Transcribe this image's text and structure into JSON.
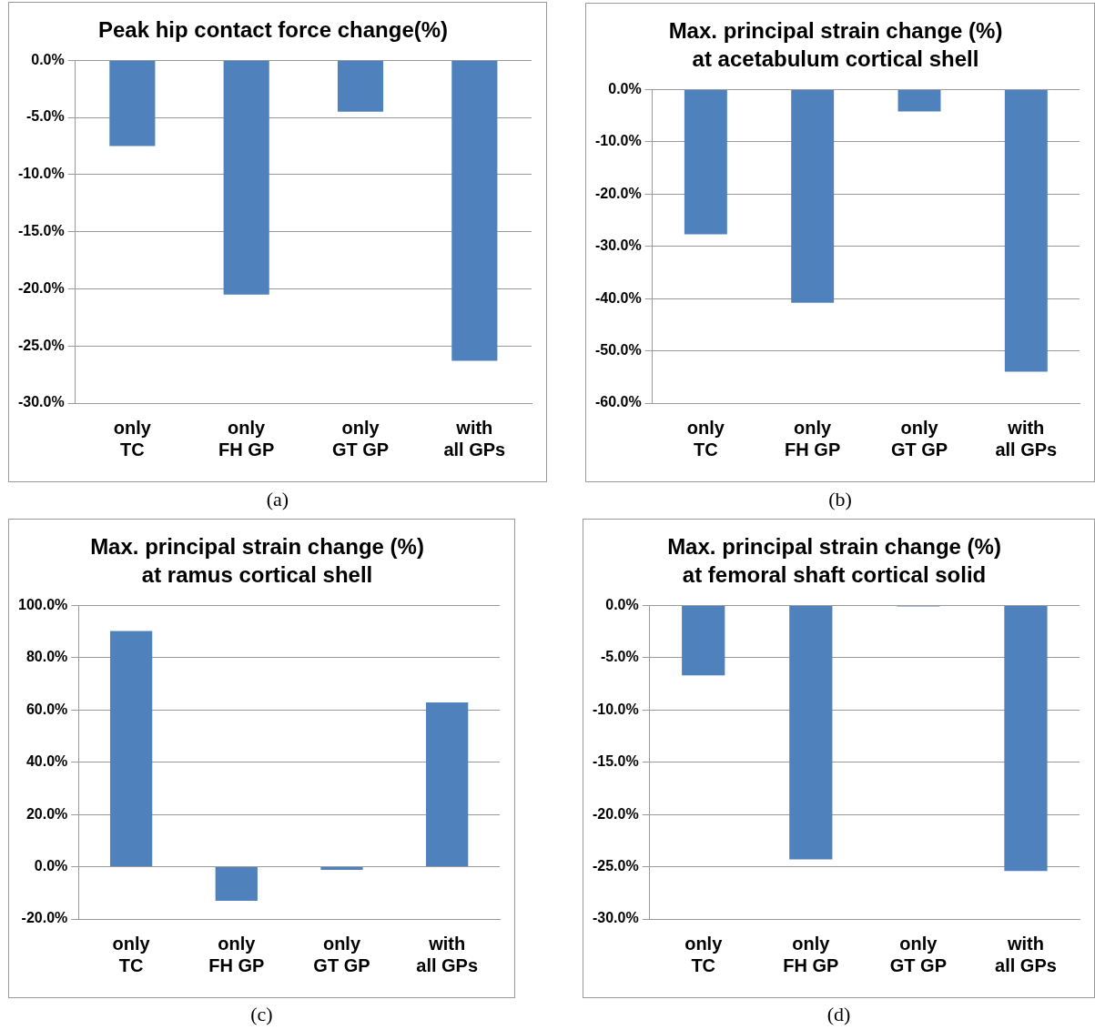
{
  "chart_data": [
    {
      "type": "bar",
      "title": "Peak hip contact force change(%)",
      "categories": [
        "only\nTC",
        "only\nFH GP",
        "only\nGT GP",
        "with\nall GPs"
      ],
      "values": [
        -7.5,
        -20.5,
        -4.5,
        -26.3
      ],
      "color": "#4f81bd",
      "ylim": [
        -30,
        0
      ],
      "yticks": [
        {
          "value": -30,
          "label": "-30.0%"
        },
        {
          "value": -25,
          "label": "-25.0%"
        },
        {
          "value": -20,
          "label": "-20.0%"
        },
        {
          "value": -15,
          "label": "-15.0%"
        },
        {
          "value": -10,
          "label": "-10.0%"
        },
        {
          "value": -5,
          "label": "-5.0%"
        },
        {
          "value": 0,
          "label": "0.0%"
        }
      ],
      "grid": "y",
      "legend": false,
      "annotations": [
        "(a)"
      ]
    },
    {
      "type": "bar",
      "title": "Max. principal strain change (%)\nat acetabulum cortical shell",
      "categories": [
        "only\nTC",
        "only\nFH GP",
        "only\nGT GP",
        "with\nall GPs"
      ],
      "values": [
        -27.7,
        -40.8,
        -4.2,
        -54.0
      ],
      "color": "#4f81bd",
      "ylim": [
        -60,
        0
      ],
      "yticks": [
        {
          "value": -60,
          "label": "-60.0%"
        },
        {
          "value": -50,
          "label": "-50.0%"
        },
        {
          "value": -40,
          "label": "-40.0%"
        },
        {
          "value": -30,
          "label": "-30.0%"
        },
        {
          "value": -20,
          "label": "-20.0%"
        },
        {
          "value": -10,
          "label": "-10.0%"
        },
        {
          "value": 0,
          "label": "0.0%"
        }
      ],
      "grid": "y",
      "legend": false,
      "annotations": [
        "(b)"
      ]
    },
    {
      "type": "bar",
      "title": "Max. principal strain change (%)\nat ramus cortical shell",
      "categories": [
        "only\nTC",
        "only\nFH GP",
        "only\nGT GP",
        "with\nall GPs"
      ],
      "values": [
        90.2,
        -13.0,
        -1.2,
        62.9
      ],
      "color": "#4f81bd",
      "ylim": [
        -20,
        100
      ],
      "yticks": [
        {
          "value": -20,
          "label": "-20.0%"
        },
        {
          "value": 0,
          "label": "0.0%"
        },
        {
          "value": 20,
          "label": "20.0%"
        },
        {
          "value": 40,
          "label": "40.0%"
        },
        {
          "value": 60,
          "label": "60.0%"
        },
        {
          "value": 80,
          "label": "80.0%"
        },
        {
          "value": 100,
          "label": "100.0%"
        }
      ],
      "grid": "y",
      "legend": false,
      "annotations": [
        "(c)"
      ]
    },
    {
      "type": "bar",
      "title": "Max. principal strain change (%)\nat femoral shaft cortical solid",
      "categories": [
        "only\nTC",
        "only\nFH GP",
        "only\nGT GP",
        "with\nall GPs"
      ],
      "values": [
        -6.7,
        -24.3,
        -0.1,
        -25.4
      ],
      "color": "#4f81bd",
      "ylim": [
        -30,
        0
      ],
      "yticks": [
        {
          "value": -30,
          "label": "-30.0%"
        },
        {
          "value": -25,
          "label": "-25.0%"
        },
        {
          "value": -20,
          "label": "-20.0%"
        },
        {
          "value": -15,
          "label": "-15.0%"
        },
        {
          "value": -10,
          "label": "-10.0%"
        },
        {
          "value": -5,
          "label": "-5.0%"
        },
        {
          "value": 0,
          "label": "0.0%"
        }
      ],
      "grid": "y",
      "legend": false,
      "annotations": [
        "(d)"
      ]
    }
  ]
}
